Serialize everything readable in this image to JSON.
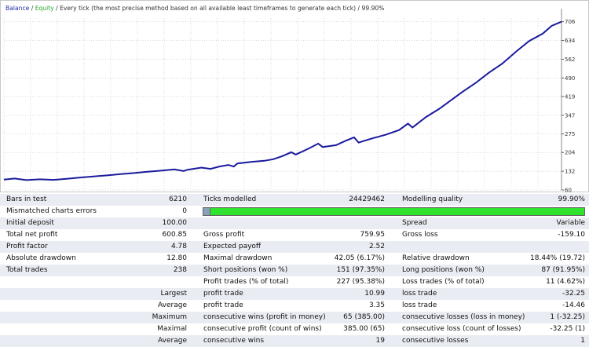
{
  "chart": {
    "legend_balance": "Balance",
    "legend_sep": " / ",
    "legend_equity": "Equity",
    "legend_rest": " / Every tick (the most precise method based on all available least timeframes to generate each tick) / 99.90%",
    "y_ticks": [
      "706",
      "634",
      "562",
      "490",
      "419",
      "347",
      "275",
      "204",
      "132",
      "60"
    ],
    "line_color": "#1a1a9e"
  },
  "chart_data": {
    "type": "line",
    "ylim": [
      60,
      720
    ],
    "xlim": [
      0,
      6210
    ],
    "series": [
      {
        "name": "Balance",
        "x": [
          0,
          120,
          250,
          400,
          550,
          700,
          850,
          1000,
          1150,
          1300,
          1450,
          1600,
          1750,
          1900,
          2000,
          2050,
          2200,
          2300,
          2400,
          2500,
          2560,
          2600,
          2750,
          2900,
          3000,
          3100,
          3200,
          3250,
          3400,
          3500,
          3550,
          3700,
          3800,
          3900,
          3950,
          4100,
          4250,
          4400,
          4500,
          4550,
          4700,
          4850,
          5000,
          5100,
          5250,
          5400,
          5550,
          5700,
          5850,
          6000,
          6100,
          6210
        ],
        "y": [
          100,
          104,
          98,
          101,
          99,
          103,
          108,
          112,
          116,
          121,
          125,
          130,
          134,
          139,
          133,
          138,
          146,
          141,
          150,
          156,
          150,
          162,
          168,
          172,
          178,
          190,
          205,
          196,
          220,
          238,
          225,
          232,
          248,
          262,
          242,
          258,
          272,
          290,
          315,
          300,
          340,
          372,
          410,
          435,
          470,
          510,
          545,
          590,
          632,
          660,
          690,
          706
        ]
      }
    ]
  },
  "report": [
    {
      "style": "odd",
      "cells": [
        {
          "c": "l0",
          "t": "Bars in test"
        },
        {
          "c": "v0",
          "t": "6210"
        },
        {
          "c": "l1",
          "t": "Ticks modelled"
        },
        {
          "c": "v1",
          "t": "24429462"
        },
        {
          "c": "l2",
          "t": "Modelling quality"
        },
        {
          "c": "v2",
          "t": "99.90%"
        }
      ]
    },
    {
      "style": "even",
      "bar": true,
      "cells": [
        {
          "c": "l0",
          "t": "Mismatched charts errors"
        },
        {
          "c": "v0",
          "t": "0"
        }
      ]
    },
    {
      "style": "odd",
      "cells": [
        {
          "c": "l0",
          "t": "Initial deposit"
        },
        {
          "c": "v0",
          "t": "100.00"
        },
        {
          "c": "l2",
          "t": "Spread"
        },
        {
          "c": "v2",
          "t": "Variable"
        }
      ]
    },
    {
      "style": "even",
      "cells": [
        {
          "c": "l0",
          "t": "Total net profit"
        },
        {
          "c": "v0",
          "t": "600.85"
        },
        {
          "c": "l1",
          "t": "Gross profit"
        },
        {
          "c": "v1",
          "t": "759.95"
        },
        {
          "c": "l2",
          "t": "Gross loss"
        },
        {
          "c": "v2",
          "t": "-159.10"
        }
      ]
    },
    {
      "style": "odd",
      "cells": [
        {
          "c": "l0",
          "t": "Profit factor"
        },
        {
          "c": "v0",
          "t": "4.78"
        },
        {
          "c": "l1",
          "t": "Expected payoff"
        },
        {
          "c": "v1",
          "t": "2.52"
        }
      ]
    },
    {
      "style": "even",
      "cells": [
        {
          "c": "l0",
          "t": "Absolute drawdown"
        },
        {
          "c": "v0",
          "t": "12.80"
        },
        {
          "c": "l1",
          "t": "Maximal drawdown"
        },
        {
          "c": "v1",
          "t": "42.05 (6.17%)"
        },
        {
          "c": "l2",
          "t": "Relative drawdown"
        },
        {
          "c": "v2",
          "t": "18.44% (19.72)"
        }
      ]
    },
    {
      "style": "odd",
      "cells": [
        {
          "c": "l0",
          "t": "Total trades"
        },
        {
          "c": "v0",
          "t": "238"
        },
        {
          "c": "l1",
          "t": "Short positions (won %)"
        },
        {
          "c": "v1",
          "t": "151 (97.35%)"
        },
        {
          "c": "l2",
          "t": "Long positions (won %)"
        },
        {
          "c": "v2",
          "t": "87 (91.95%)"
        }
      ]
    },
    {
      "style": "even",
      "cells": [
        {
          "c": "l1",
          "t": "Profit trades (% of total)"
        },
        {
          "c": "v1",
          "t": "227 (95.38%)"
        },
        {
          "c": "l2",
          "t": "Loss trades (% of total)"
        },
        {
          "c": "v2",
          "t": "11 (4.62%)"
        }
      ]
    },
    {
      "style": "odd",
      "cells": [
        {
          "c": "r0",
          "t": "Largest"
        },
        {
          "c": "l1",
          "t": "profit trade"
        },
        {
          "c": "v1",
          "t": "10.99"
        },
        {
          "c": "l2",
          "t": "loss trade"
        },
        {
          "c": "v2",
          "t": "-32.25"
        }
      ]
    },
    {
      "style": "even",
      "cells": [
        {
          "c": "r0",
          "t": "Average"
        },
        {
          "c": "l1",
          "t": "profit trade"
        },
        {
          "c": "v1",
          "t": "3.35"
        },
        {
          "c": "l2",
          "t": "loss trade"
        },
        {
          "c": "v2",
          "t": "-14.46"
        }
      ]
    },
    {
      "style": "odd",
      "cells": [
        {
          "c": "r0",
          "t": "Maximum"
        },
        {
          "c": "l1",
          "t": "consecutive wins (profit in money)"
        },
        {
          "c": "v1",
          "t": "65 (385.00)"
        },
        {
          "c": "l2",
          "t": "consecutive losses (loss in money)"
        },
        {
          "c": "v2",
          "t": "1 (-32.25)"
        }
      ]
    },
    {
      "style": "even",
      "cells": [
        {
          "c": "r0",
          "t": "Maximal"
        },
        {
          "c": "l1",
          "t": "consecutive profit (count of wins)"
        },
        {
          "c": "v1",
          "t": "385.00 (65)"
        },
        {
          "c": "l2",
          "t": "consecutive loss (count of losses)"
        },
        {
          "c": "v2",
          "t": "-32.25 (1)"
        }
      ]
    },
    {
      "style": "odd",
      "cells": [
        {
          "c": "r0",
          "t": "Average"
        },
        {
          "c": "l1",
          "t": "consecutive wins"
        },
        {
          "c": "v1",
          "t": "19"
        },
        {
          "c": "l2",
          "t": "consecutive losses"
        },
        {
          "c": "v2",
          "t": "1"
        }
      ]
    }
  ]
}
